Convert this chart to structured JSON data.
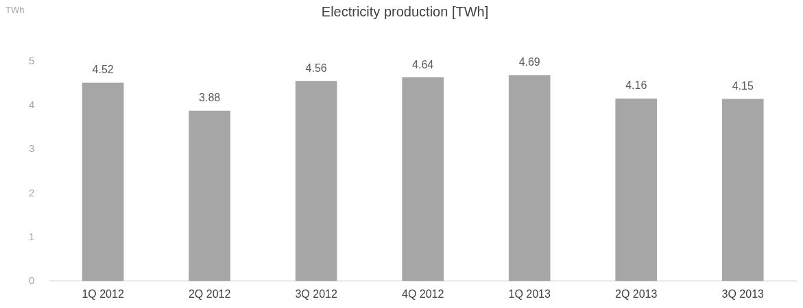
{
  "chart_data": {
    "type": "bar",
    "title": "Electricity production [TWh]",
    "ylabel": "TWh",
    "categories": [
      "1Q 2012",
      "2Q 2012",
      "3Q 2012",
      "4Q 2012",
      "1Q 2013",
      "2Q 2013",
      "3Q 2013"
    ],
    "values": [
      4.52,
      3.88,
      4.56,
      4.64,
      4.69,
      4.16,
      4.15
    ],
    "color": "#a6a6a6",
    "ylim": [
      0,
      5
    ],
    "yticks": [
      0,
      1,
      2,
      3,
      4,
      5
    ],
    "grid": false,
    "legend": false,
    "data_labels": true
  }
}
